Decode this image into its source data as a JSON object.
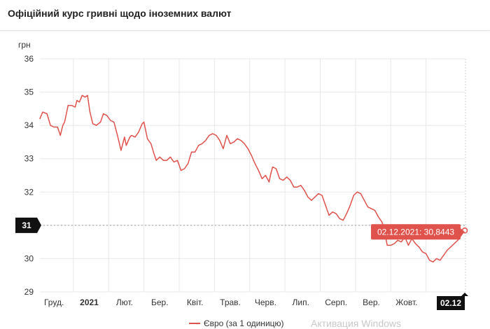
{
  "header": {
    "title": "Офіційний курс гривні щодо іноземних валют"
  },
  "watermark": "Активация Windows",
  "colors": {
    "series": "#e0524c",
    "grid": "#e8e8e8",
    "axis_text": "#333333",
    "marker_bg": "#111111",
    "tooltip_bg": "#e0524c"
  },
  "chart_data": {
    "type": "line",
    "ylabel": "грн",
    "ylim": [
      29,
      36
    ],
    "yticks": [
      29,
      30,
      31,
      32,
      33,
      34,
      35,
      36
    ],
    "xlim": [
      0,
      12.05
    ],
    "xticks": [
      {
        "label": "Груд.",
        "x": 0.4,
        "bold": false
      },
      {
        "label": "2021",
        "x": 1.4,
        "bold": true
      },
      {
        "label": "Лют.",
        "x": 2.4,
        "bold": false
      },
      {
        "label": "Бер.",
        "x": 3.4,
        "bold": false
      },
      {
        "label": "Квіт.",
        "x": 4.4,
        "bold": false
      },
      {
        "label": "Трав.",
        "x": 5.4,
        "bold": false
      },
      {
        "label": "Черв.",
        "x": 6.4,
        "bold": false
      },
      {
        "label": "Лип.",
        "x": 7.4,
        "bold": false
      },
      {
        "label": "Серп.",
        "x": 8.4,
        "bold": false
      },
      {
        "label": "Вер.",
        "x": 9.4,
        "bold": false
      },
      {
        "label": "Жовт.",
        "x": 10.4,
        "bold": false
      }
    ],
    "gridlines_x": [
      0.95,
      1.95,
      2.95,
      3.95,
      4.95,
      5.95,
      6.95,
      7.95,
      8.95,
      9.95,
      10.95
    ],
    "y_marker": {
      "label": "31",
      "value": 31
    },
    "x_marker": {
      "label": "02.12",
      "x": 12.05
    },
    "tooltip": "02.12.2021: 30,8443",
    "legend": "top-bottom",
    "series": [
      {
        "name": "Євро (за 1 одиницю)",
        "points": [
          [
            0.0,
            34.2
          ],
          [
            0.08,
            34.4
          ],
          [
            0.2,
            34.35
          ],
          [
            0.3,
            34.0
          ],
          [
            0.4,
            33.95
          ],
          [
            0.5,
            33.95
          ],
          [
            0.58,
            33.7
          ],
          [
            0.65,
            34.0
          ],
          [
            0.7,
            34.1
          ],
          [
            0.8,
            34.6
          ],
          [
            0.9,
            34.6
          ],
          [
            1.0,
            34.55
          ],
          [
            1.05,
            34.75
          ],
          [
            1.12,
            34.7
          ],
          [
            1.2,
            34.9
          ],
          [
            1.28,
            34.85
          ],
          [
            1.35,
            34.9
          ],
          [
            1.42,
            34.4
          ],
          [
            1.5,
            34.05
          ],
          [
            1.6,
            34.0
          ],
          [
            1.72,
            34.1
          ],
          [
            1.8,
            34.35
          ],
          [
            1.9,
            34.3
          ],
          [
            2.0,
            34.15
          ],
          [
            2.1,
            34.1
          ],
          [
            2.2,
            33.7
          ],
          [
            2.3,
            33.25
          ],
          [
            2.4,
            33.65
          ],
          [
            2.45,
            33.4
          ],
          [
            2.55,
            33.65
          ],
          [
            2.6,
            33.7
          ],
          [
            2.7,
            33.65
          ],
          [
            2.8,
            33.8
          ],
          [
            2.9,
            34.05
          ],
          [
            2.95,
            34.1
          ],
          [
            3.05,
            33.6
          ],
          [
            3.15,
            33.45
          ],
          [
            3.22,
            33.2
          ],
          [
            3.3,
            32.95
          ],
          [
            3.4,
            33.05
          ],
          [
            3.5,
            32.95
          ],
          [
            3.6,
            32.95
          ],
          [
            3.7,
            33.05
          ],
          [
            3.8,
            32.9
          ],
          [
            3.9,
            32.95
          ],
          [
            4.0,
            32.65
          ],
          [
            4.1,
            32.7
          ],
          [
            4.2,
            32.85
          ],
          [
            4.3,
            33.2
          ],
          [
            4.4,
            33.2
          ],
          [
            4.5,
            33.4
          ],
          [
            4.6,
            33.45
          ],
          [
            4.7,
            33.55
          ],
          [
            4.8,
            33.7
          ],
          [
            4.9,
            33.75
          ],
          [
            5.0,
            33.7
          ],
          [
            5.1,
            33.55
          ],
          [
            5.2,
            33.3
          ],
          [
            5.3,
            33.7
          ],
          [
            5.4,
            33.45
          ],
          [
            5.5,
            33.5
          ],
          [
            5.6,
            33.6
          ],
          [
            5.7,
            33.55
          ],
          [
            5.8,
            33.45
          ],
          [
            5.9,
            33.3
          ],
          [
            6.0,
            33.1
          ],
          [
            6.1,
            32.85
          ],
          [
            6.2,
            32.65
          ],
          [
            6.3,
            32.4
          ],
          [
            6.4,
            32.5
          ],
          [
            6.5,
            32.3
          ],
          [
            6.55,
            32.55
          ],
          [
            6.6,
            32.75
          ],
          [
            6.7,
            32.7
          ],
          [
            6.8,
            32.4
          ],
          [
            6.9,
            32.35
          ],
          [
            7.0,
            32.45
          ],
          [
            7.1,
            32.35
          ],
          [
            7.2,
            32.15
          ],
          [
            7.3,
            32.15
          ],
          [
            7.4,
            32.2
          ],
          [
            7.5,
            32.05
          ],
          [
            7.6,
            31.85
          ],
          [
            7.7,
            31.75
          ],
          [
            7.8,
            31.85
          ],
          [
            7.9,
            31.95
          ],
          [
            8.0,
            31.9
          ],
          [
            8.1,
            31.6
          ],
          [
            8.2,
            31.3
          ],
          [
            8.3,
            31.4
          ],
          [
            8.4,
            31.35
          ],
          [
            8.5,
            31.2
          ],
          [
            8.6,
            31.15
          ],
          [
            8.7,
            31.35
          ],
          [
            8.8,
            31.6
          ],
          [
            8.9,
            31.9
          ],
          [
            9.0,
            32.0
          ],
          [
            9.1,
            31.95
          ],
          [
            9.2,
            31.75
          ],
          [
            9.3,
            31.55
          ],
          [
            9.4,
            31.5
          ],
          [
            9.5,
            31.45
          ],
          [
            9.6,
            31.25
          ],
          [
            9.7,
            31.1
          ],
          [
            9.75,
            30.95
          ],
          [
            9.85,
            30.4
          ],
          [
            9.95,
            30.4
          ],
          [
            10.05,
            30.45
          ],
          [
            10.15,
            30.55
          ],
          [
            10.25,
            30.5
          ],
          [
            10.35,
            30.65
          ],
          [
            10.45,
            30.4
          ],
          [
            10.55,
            30.6
          ],
          [
            10.65,
            30.45
          ],
          [
            10.75,
            30.35
          ],
          [
            10.85,
            30.2
          ],
          [
            10.95,
            30.15
          ],
          [
            11.05,
            29.95
          ],
          [
            11.15,
            29.9
          ],
          [
            11.25,
            30.0
          ],
          [
            11.35,
            29.95
          ],
          [
            11.45,
            30.1
          ],
          [
            11.55,
            30.25
          ],
          [
            11.65,
            30.35
          ],
          [
            11.75,
            30.45
          ],
          [
            11.85,
            30.55
          ],
          [
            11.95,
            30.7
          ],
          [
            12.05,
            30.8443
          ]
        ]
      }
    ]
  }
}
